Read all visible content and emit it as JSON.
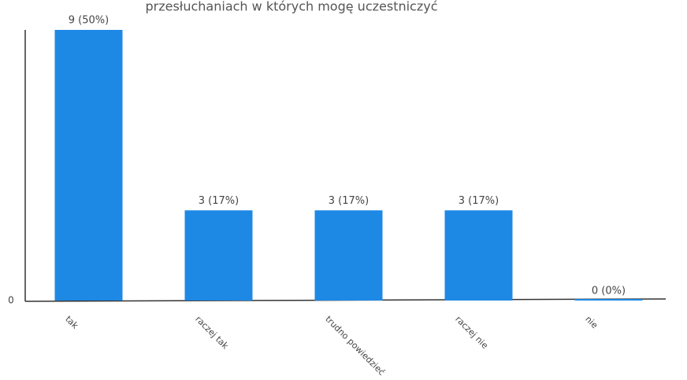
{
  "chart_data": {
    "type": "bar",
    "title": "przesłuchaniach w których mogę uczestniczyć",
    "categories": [
      "tak",
      "raczej tak",
      "trudno powiedzieć",
      "raczej nie",
      "nie"
    ],
    "values": [
      9,
      3,
      3,
      3,
      0
    ],
    "value_labels": [
      "9 (50%)",
      "3 (17%)",
      "3 (17%)",
      "3 (17%)",
      "0 (0%)"
    ],
    "color": "#1e88e5",
    "ylim": [
      0,
      9
    ],
    "yticks": [
      0
    ],
    "grid": false
  }
}
